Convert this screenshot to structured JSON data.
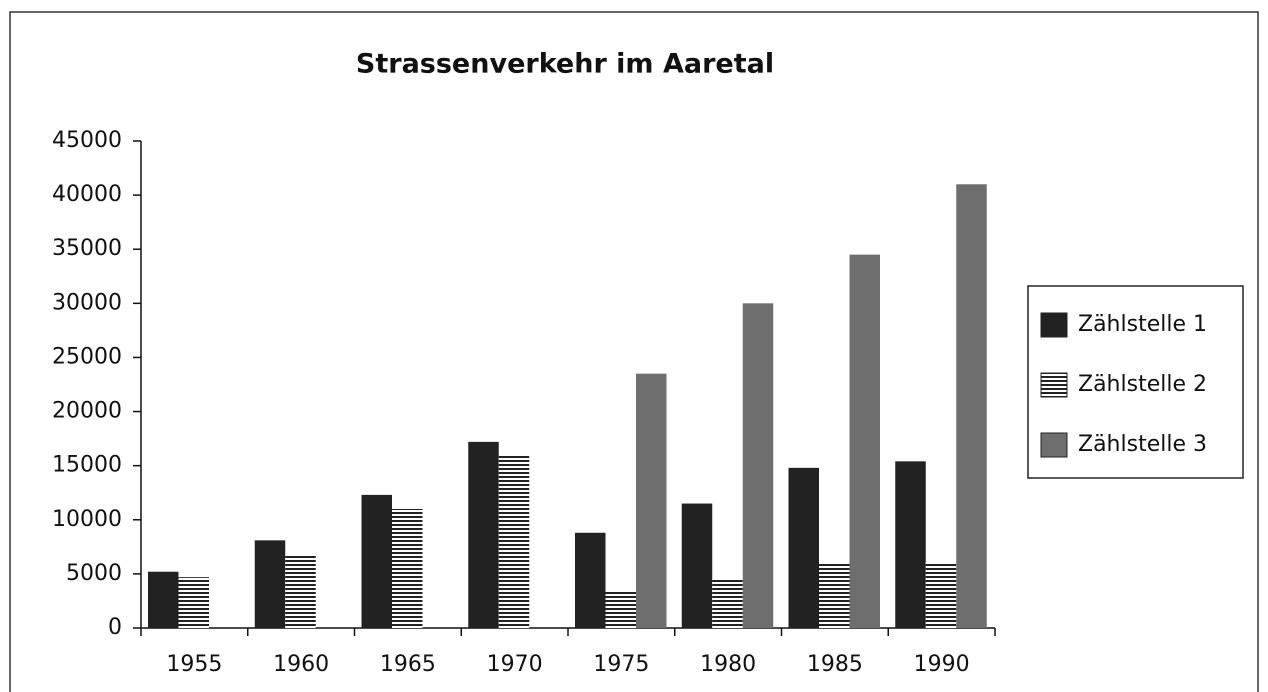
{
  "chart_data": {
    "type": "bar",
    "title": "Strassenverkehr im Aaretal",
    "categories": [
      "1955",
      "1960",
      "1965",
      "1970",
      "1975",
      "1980",
      "1985",
      "1990"
    ],
    "series": [
      {
        "name": "Zählstelle 1",
        "color": "#222222",
        "values": [
          5200,
          8100,
          12300,
          17200,
          8800,
          11500,
          14800,
          15400
        ]
      },
      {
        "name": "Zählstelle 2",
        "color": "#222222",
        "hatch": "horizontal",
        "values": [
          4700,
          6700,
          11000,
          15900,
          3500,
          4500,
          6100,
          6100
        ]
      },
      {
        "name": "Zählstelle 3",
        "color": "#6e6e6e",
        "values": [
          null,
          null,
          null,
          null,
          23500,
          30000,
          34500,
          41000
        ]
      }
    ],
    "ylim": [
      0,
      45000
    ],
    "yticks": [
      0,
      5000,
      10000,
      15000,
      20000,
      25000,
      30000,
      35000,
      40000,
      45000
    ],
    "legend": "right"
  }
}
